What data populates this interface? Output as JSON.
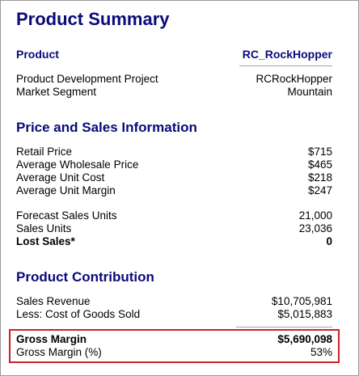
{
  "title": "Product Summary",
  "header": {
    "label": "Product",
    "value": "RC_RockHopper"
  },
  "product_info": [
    {
      "label": "Product Development Project",
      "value": "RCRockHopper"
    },
    {
      "label": "Market Segment",
      "value": "Mountain"
    }
  ],
  "price_section": {
    "title": "Price and Sales Information",
    "prices": [
      {
        "label": "Retail Price",
        "value": "$715"
      },
      {
        "label": "Average Wholesale Price",
        "value": "$465"
      },
      {
        "label": "Average Unit Cost",
        "value": "$218"
      },
      {
        "label": "Average Unit Margin",
        "value": "$247"
      }
    ],
    "sales": [
      {
        "label": "Forecast Sales Units",
        "value": "21,000"
      },
      {
        "label": "Sales Units",
        "value": "23,036"
      },
      {
        "label": "Lost Sales*",
        "value": "0"
      }
    ]
  },
  "contribution_section": {
    "title": "Product Contribution",
    "rows": [
      {
        "label": "Sales Revenue",
        "value": "$10,705,981"
      },
      {
        "label": "Less: Cost of Goods Sold",
        "value": "$5,015,883"
      }
    ],
    "gross_margin": {
      "label": "Gross Margin",
      "value": "$5,690,098"
    },
    "gross_margin_pct": {
      "label": "Gross Margin (%)",
      "value": "53%"
    }
  },
  "colors": {
    "heading": "#0a0a7a",
    "highlight": "#d0202a",
    "rule": "#a6a6a6"
  }
}
